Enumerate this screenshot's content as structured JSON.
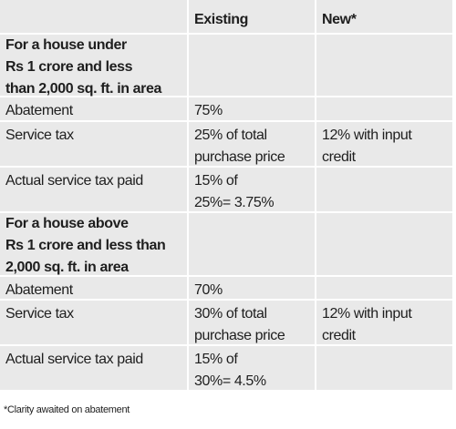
{
  "table": {
    "header": {
      "existing": "Existing",
      "new": "New*"
    },
    "rows": [
      {
        "section": [
          "For a house under",
          "Rs 1 crore and less",
          "than 2,000 sq. ft. in area"
        ]
      },
      {
        "label": [
          "Abatement"
        ],
        "existing": [
          "75%"
        ]
      },
      {
        "label": [
          "Service tax"
        ],
        "existing": [
          "25% of total",
          "purchase price"
        ],
        "new": [
          "12% with input",
          "credit"
        ]
      },
      {
        "label": [
          "Actual service tax paid"
        ],
        "existing": [
          "15% of",
          "25%= 3.75%"
        ]
      },
      {
        "section": [
          "For a house above",
          "Rs 1 crore and less than",
          "2,000 sq. ft. in area"
        ]
      },
      {
        "label": [
          "Abatement"
        ],
        "existing": [
          "70%"
        ]
      },
      {
        "label": [
          "Service tax"
        ],
        "existing": [
          "30% of total",
          "purchase price"
        ],
        "new": [
          "12% with input",
          "credit"
        ]
      },
      {
        "label": [
          "Actual service tax paid"
        ],
        "existing": [
          "15% of",
          "30%= 4.5%"
        ]
      }
    ],
    "footnote": "*Clarity awaited on abatement"
  }
}
